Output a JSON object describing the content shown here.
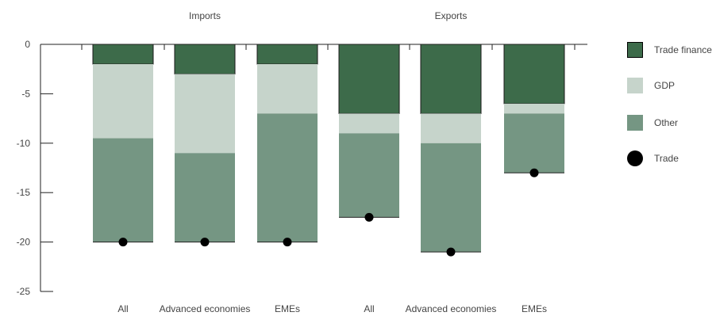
{
  "chart_data": {
    "type": "bar",
    "stacked": true,
    "groups": [
      {
        "label": "Imports",
        "categories": [
          "All",
          "Advanced economies",
          "EMEs"
        ]
      },
      {
        "label": "Exports",
        "categories": [
          "All",
          "Advanced economies",
          "EMEs"
        ]
      }
    ],
    "categories": [
      "All",
      "Advanced economies",
      "EMEs",
      "All",
      "Advanced economies",
      "EMEs"
    ],
    "series": [
      {
        "name": "Trade finance",
        "color": "#3d6b4a",
        "values": [
          -2,
          -3,
          -2,
          -7,
          -7,
          -6
        ]
      },
      {
        "name": "GDP",
        "color": "#c6d4cb",
        "values": [
          -7.5,
          -8,
          -5,
          -2,
          -3,
          -1
        ]
      },
      {
        "name": "Other",
        "color": "#759683",
        "values": [
          -10.5,
          -9,
          -13,
          -8.5,
          -11,
          -6
        ]
      }
    ],
    "markers": {
      "name": "Trade",
      "values": [
        -20,
        -20,
        -20,
        -17.5,
        -21,
        -13
      ]
    },
    "ylim": [
      -25,
      0
    ],
    "yticks": [
      0,
      -5,
      -10,
      -15,
      -20,
      -25
    ],
    "title": "",
    "xlabel": "",
    "ylabel": "",
    "legend_position": "right"
  },
  "legend": [
    {
      "label": "Trade finance",
      "kind": "swatch",
      "color": "#3d6b4a"
    },
    {
      "label": "GDP",
      "kind": "swatch",
      "color": "#c6d4cb"
    },
    {
      "label": "Other",
      "kind": "swatch",
      "color": "#759683"
    },
    {
      "label": "Trade",
      "kind": "dot",
      "color": "#000000"
    }
  ]
}
